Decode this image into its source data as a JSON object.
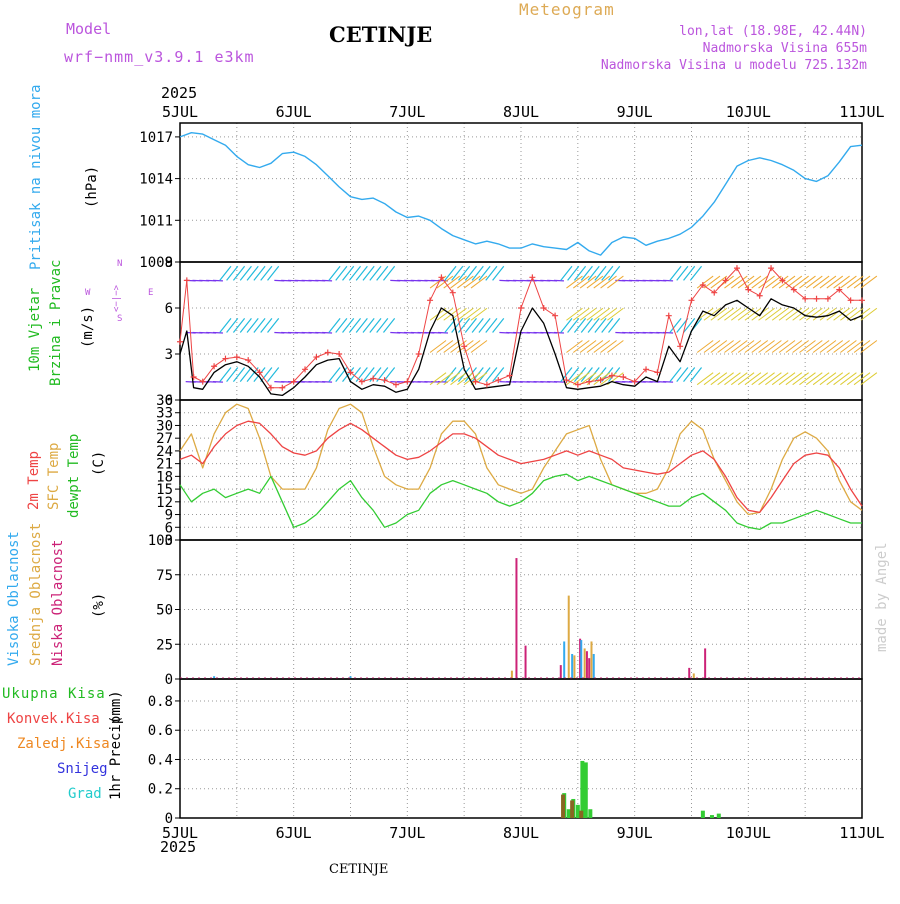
{
  "header": {
    "model_label": "Model",
    "model_name": "wrf−nmm_v3.9.1 e3km",
    "station": "CETINJE",
    "product": "Meteogram",
    "lonlat": "lon,lat (18.98E, 42.44N)",
    "elevation": "Nadmorska Visina 655m",
    "model_elevation": "Nadmorska Visina u modelu 725.132m",
    "year": "2025"
  },
  "footer": {
    "station": "CETINJE",
    "year": "2025",
    "credit": "made by Angel"
  },
  "colors": {
    "pressure": "#33aaee",
    "wind_speed": "#000000",
    "gust": "#ee4444",
    "t2m": "#ee4444",
    "tsfc": "#ddaa44",
    "dewpt": "#33cc33",
    "cloud_high": "#33aaee",
    "cloud_mid": "#ddaa44",
    "cloud_low": "#cc2277",
    "rain_total": "#33cc33",
    "rain_conv": "#ee4444",
    "rain_frozen": "#ee8822",
    "snow": "#3333dd",
    "grad": "#22cccc"
  },
  "chart_data": [
    {
      "type": "line",
      "panel": "pressure",
      "ylabel": "Pritisak na nivou mora",
      "unit": "(hPa)",
      "x_categories": [
        "5JUL",
        "6JUL",
        "7JUL",
        "8JUL",
        "9JUL",
        "10JUL",
        "11JUL"
      ],
      "ylim": [
        1008,
        1018
      ],
      "yticks": [
        1008,
        1011,
        1014,
        1017
      ],
      "x": [
        0,
        0.1,
        0.2,
        0.3,
        0.4,
        0.5,
        0.6,
        0.7,
        0.8,
        0.9,
        1,
        1.1,
        1.2,
        1.3,
        1.4,
        1.5,
        1.6,
        1.7,
        1.8,
        1.9,
        2,
        2.1,
        2.2,
        2.3,
        2.4,
        2.5,
        2.6,
        2.7,
        2.8,
        2.9,
        3,
        3.1,
        3.2,
        3.3,
        3.4,
        3.5,
        3.6,
        3.7,
        3.8,
        3.9,
        4,
        4.1,
        4.2,
        4.3,
        4.4,
        4.5,
        4.6,
        4.7,
        4.8,
        4.9,
        5,
        5.1,
        5.2,
        5.3,
        5.4,
        5.5,
        5.6,
        5.7,
        5.8,
        5.9,
        6
      ],
      "values": [
        1017,
        1017.3,
        1017.2,
        1016.8,
        1016.4,
        1015.6,
        1015,
        1014.8,
        1015.1,
        1015.8,
        1015.9,
        1015.6,
        1015,
        1014.2,
        1013.4,
        1012.7,
        1012.5,
        1012.6,
        1012.2,
        1011.6,
        1011.2,
        1011.3,
        1011.0,
        1010.4,
        1009.9,
        1009.6,
        1009.3,
        1009.5,
        1009.3,
        1009.0,
        1009.0,
        1009.3,
        1009.1,
        1009.0,
        1008.9,
        1009.4,
        1008.8,
        1008.5,
        1009.4,
        1009.8,
        1009.7,
        1009.2,
        1009.5,
        1009.7,
        1010.0,
        1010.5,
        1011.3,
        1012.3,
        1013.6,
        1014.9,
        1015.3,
        1015.5,
        1015.3,
        1015.0,
        1014.6,
        1014.0,
        1013.8,
        1014.2,
        1015.2,
        1016.3,
        1016.4
      ]
    },
    {
      "type": "line",
      "panel": "wind",
      "ylabel": "10m Vjetar",
      "ylabel2": "Brzina i Pravac",
      "unit": "(m/s)",
      "ylim": [
        0,
        9
      ],
      "yticks": [
        0,
        3,
        6,
        9
      ],
      "compass": [
        "N",
        "<−|−>",
        "E",
        "W",
        "S"
      ],
      "series": [
        {
          "name": "speed",
          "x": [
            0,
            0.06,
            0.12,
            0.2,
            0.3,
            0.4,
            0.5,
            0.6,
            0.7,
            0.8,
            0.9,
            1,
            1.1,
            1.2,
            1.3,
            1.4,
            1.5,
            1.6,
            1.7,
            1.8,
            1.9,
            2,
            2.1,
            2.2,
            2.3,
            2.4,
            2.5,
            2.6,
            2.7,
            2.8,
            2.9,
            3,
            3.1,
            3.2,
            3.3,
            3.4,
            3.5,
            3.6,
            3.7,
            3.8,
            3.9,
            4,
            4.1,
            4.2,
            4.3,
            4.4,
            4.5,
            4.6,
            4.7,
            4.8,
            4.9,
            5,
            5.1,
            5.2,
            5.3,
            5.4,
            5.5,
            5.6,
            5.7,
            5.8,
            5.9,
            6
          ],
          "values": [
            3,
            4.5,
            0.8,
            0.7,
            1.8,
            2.3,
            2.5,
            2.2,
            1.5,
            0.4,
            0.3,
            0.8,
            1.5,
            2.3,
            2.6,
            2.7,
            1.2,
            0.7,
            1.0,
            0.9,
            0.5,
            0.7,
            2,
            4.5,
            6,
            5.5,
            2,
            0.7,
            0.8,
            0.9,
            1.0,
            4.5,
            6,
            5.0,
            3.0,
            0.8,
            0.7,
            0.8,
            0.9,
            1.2,
            1.0,
            0.9,
            1.5,
            1.2,
            3.5,
            2.5,
            4.5,
            5.8,
            5.5,
            6.2,
            6.5,
            6.0,
            5.5,
            6.6,
            6.2,
            6.0,
            5.5,
            5.4,
            5.5,
            5.8,
            5.2,
            5.5
          ]
        },
        {
          "name": "gust",
          "x": [
            0,
            0.06,
            0.12,
            0.2,
            0.3,
            0.4,
            0.5,
            0.6,
            0.7,
            0.8,
            0.9,
            1,
            1.1,
            1.2,
            1.3,
            1.4,
            1.5,
            1.6,
            1.7,
            1.8,
            1.9,
            2,
            2.1,
            2.2,
            2.3,
            2.4,
            2.5,
            2.6,
            2.7,
            2.8,
            2.9,
            3,
            3.1,
            3.2,
            3.3,
            3.4,
            3.5,
            3.6,
            3.7,
            3.8,
            3.9,
            4,
            4.1,
            4.2,
            4.3,
            4.4,
            4.5,
            4.6,
            4.7,
            4.8,
            4.9,
            5,
            5.1,
            5.2,
            5.3,
            5.4,
            5.5,
            5.6,
            5.7,
            5.8,
            5.9,
            6
          ],
          "values": [
            3.8,
            7.8,
            1.5,
            1.2,
            2.2,
            2.7,
            2.8,
            2.6,
            1.8,
            0.8,
            0.8,
            1.2,
            2,
            2.8,
            3.1,
            3.0,
            1.8,
            1.2,
            1.4,
            1.3,
            1.0,
            1.2,
            3,
            6.5,
            8,
            7.0,
            3.5,
            1.2,
            1.0,
            1.3,
            1.6,
            6,
            8,
            6.0,
            5.5,
            1.3,
            1.0,
            1.2,
            1.3,
            1.6,
            1.5,
            1.2,
            2,
            1.8,
            5.5,
            3.5,
            6.5,
            7.5,
            7.0,
            7.8,
            8.6,
            7.2,
            6.8,
            8.6,
            7.8,
            7.2,
            6.6,
            6.6,
            6.6,
            7.2,
            6.5,
            6.5
          ]
        }
      ]
    },
    {
      "type": "line",
      "panel": "temperature",
      "ylabel": "2m Temp",
      "ylabel2": "SFC Temp",
      "ylabel3": "dewpt Temp",
      "unit": "(C)",
      "ylim": [
        3,
        36
      ],
      "yticks": [
        3,
        6,
        9,
        12,
        15,
        18,
        21,
        24,
        27,
        30,
        33,
        36
      ],
      "series": [
        {
          "name": "2m Temp",
          "x": [
            0,
            0.1,
            0.2,
            0.3,
            0.4,
            0.5,
            0.6,
            0.7,
            0.8,
            0.9,
            1,
            1.1,
            1.2,
            1.3,
            1.4,
            1.5,
            1.6,
            1.7,
            1.8,
            1.9,
            2,
            2.1,
            2.2,
            2.3,
            2.4,
            2.5,
            2.6,
            2.7,
            2.8,
            2.9,
            3,
            3.1,
            3.2,
            3.3,
            3.4,
            3.5,
            3.6,
            3.7,
            3.8,
            3.9,
            4,
            4.1,
            4.2,
            4.3,
            4.4,
            4.5,
            4.6,
            4.7,
            4.8,
            4.9,
            5,
            5.1,
            5.2,
            5.3,
            5.4,
            5.5,
            5.6,
            5.7,
            5.8,
            5.9,
            6
          ],
          "values": [
            22,
            23,
            21,
            25,
            28,
            30,
            31,
            30.5,
            28,
            25,
            23.5,
            23,
            24,
            27,
            29,
            30.5,
            29,
            27,
            25,
            23,
            22,
            22.5,
            24,
            26,
            28,
            28,
            27,
            25,
            23,
            22,
            21,
            21.5,
            22,
            23,
            24,
            23,
            24,
            23,
            22,
            20,
            19.5,
            19,
            18.5,
            19,
            21,
            23,
            24,
            22,
            18,
            13,
            10,
            9.5,
            13,
            17,
            21,
            23,
            23.5,
            23,
            20,
            15,
            11
          ]
        },
        {
          "name": "SFC Temp",
          "x": [
            0,
            0.1,
            0.2,
            0.3,
            0.4,
            0.5,
            0.6,
            0.7,
            0.8,
            0.9,
            1,
            1.1,
            1.2,
            1.3,
            1.4,
            1.5,
            1.6,
            1.7,
            1.8,
            1.9,
            2,
            2.1,
            2.2,
            2.3,
            2.4,
            2.5,
            2.6,
            2.7,
            2.8,
            2.9,
            3,
            3.1,
            3.2,
            3.3,
            3.4,
            3.5,
            3.6,
            3.7,
            3.8,
            3.9,
            4,
            4.1,
            4.2,
            4.3,
            4.4,
            4.5,
            4.6,
            4.7,
            4.8,
            4.9,
            5,
            5.1,
            5.2,
            5.3,
            5.4,
            5.5,
            5.6,
            5.7,
            5.8,
            5.9,
            6
          ],
          "values": [
            24,
            28,
            20,
            28,
            33,
            35,
            34,
            27,
            18,
            15,
            15,
            15,
            20,
            29,
            34,
            35,
            33,
            25,
            18,
            16,
            15,
            15,
            20,
            28,
            31,
            31,
            28,
            20,
            16,
            15,
            14,
            15,
            20,
            24,
            28,
            29,
            30,
            22,
            16,
            15,
            14,
            14,
            15,
            20,
            28,
            31,
            29,
            22,
            17,
            12,
            9,
            9.5,
            15,
            22,
            27,
            28.5,
            27,
            24,
            17,
            12,
            10
          ]
        },
        {
          "name": "dewpt Temp",
          "x": [
            0,
            0.1,
            0.2,
            0.3,
            0.4,
            0.5,
            0.6,
            0.7,
            0.8,
            0.9,
            1,
            1.1,
            1.2,
            1.3,
            1.4,
            1.5,
            1.6,
            1.7,
            1.8,
            1.9,
            2,
            2.1,
            2.2,
            2.3,
            2.4,
            2.5,
            2.6,
            2.7,
            2.8,
            2.9,
            3,
            3.1,
            3.2,
            3.3,
            3.4,
            3.5,
            3.6,
            3.7,
            3.8,
            3.9,
            4,
            4.1,
            4.2,
            4.3,
            4.4,
            4.5,
            4.6,
            4.7,
            4.8,
            4.9,
            5,
            5.1,
            5.2,
            5.3,
            5.4,
            5.5,
            5.6,
            5.7,
            5.8,
            5.9,
            6
          ],
          "values": [
            16,
            12,
            14,
            15,
            13,
            14,
            15,
            14,
            18,
            12,
            6,
            7,
            9,
            12,
            15,
            17,
            13,
            10,
            6,
            7,
            9,
            10,
            14,
            16,
            17,
            16,
            15,
            14,
            12,
            11,
            12,
            14,
            17,
            18,
            18.5,
            17,
            18,
            17,
            16,
            15,
            14,
            13,
            12,
            11,
            11,
            13,
            14,
            12,
            10,
            7,
            6,
            5.5,
            7,
            7,
            8,
            9,
            10,
            9,
            8,
            7,
            7
          ]
        }
      ]
    },
    {
      "type": "bar",
      "panel": "clouds",
      "ylabel": "Visoka Oblacnost",
      "ylabel2": "Srednja Oblacnost",
      "ylabel3": "Niska Oblacnost",
      "unit": "(%)",
      "ylim": [
        0,
        100
      ],
      "yticks": [
        0,
        25,
        50,
        75,
        100
      ],
      "series": [
        {
          "name": "Niska",
          "x": [
            2.96,
            3.04,
            3.35,
            3.52,
            3.58,
            3.6,
            4.48,
            4.62
          ],
          "values": [
            87,
            24,
            10,
            29,
            20,
            15,
            8,
            22
          ]
        },
        {
          "name": "Srednja",
          "x": [
            2.92,
            3.42,
            3.47,
            3.56,
            3.62,
            4.52
          ],
          "values": [
            6,
            60,
            17,
            22,
            27,
            4
          ]
        },
        {
          "name": "Visoka",
          "x": [
            0.3,
            1.5,
            3.38,
            3.45,
            3.53,
            3.64
          ],
          "values": [
            2,
            2,
            27,
            18,
            28,
            18
          ]
        }
      ]
    },
    {
      "type": "bar",
      "panel": "precip",
      "ylabel": "1hr Precip",
      "unit": "(mm)",
      "ylim": [
        0,
        0.95
      ],
      "yticks": [
        0,
        0.2,
        0.4,
        0.6,
        0.8
      ],
      "legend": [
        "Ukupna Kisa",
        "Konvek.Kisa",
        "Zaledj.Kisa",
        "Snijeg",
        "Grad"
      ],
      "series": [
        {
          "name": "Ukupna",
          "x": [
            3.38,
            3.42,
            3.46,
            3.5,
            3.54,
            3.57,
            3.61,
            4.6,
            4.68,
            4.74
          ],
          "values": [
            0.17,
            0.06,
            0.13,
            0.09,
            0.39,
            0.38,
            0.06,
            0.05,
            0.02,
            0.03
          ]
        },
        {
          "name": "Konvek",
          "x": [
            3.37,
            3.45,
            3.53
          ],
          "values": [
            0.16,
            0.12,
            0.05
          ]
        }
      ]
    }
  ]
}
